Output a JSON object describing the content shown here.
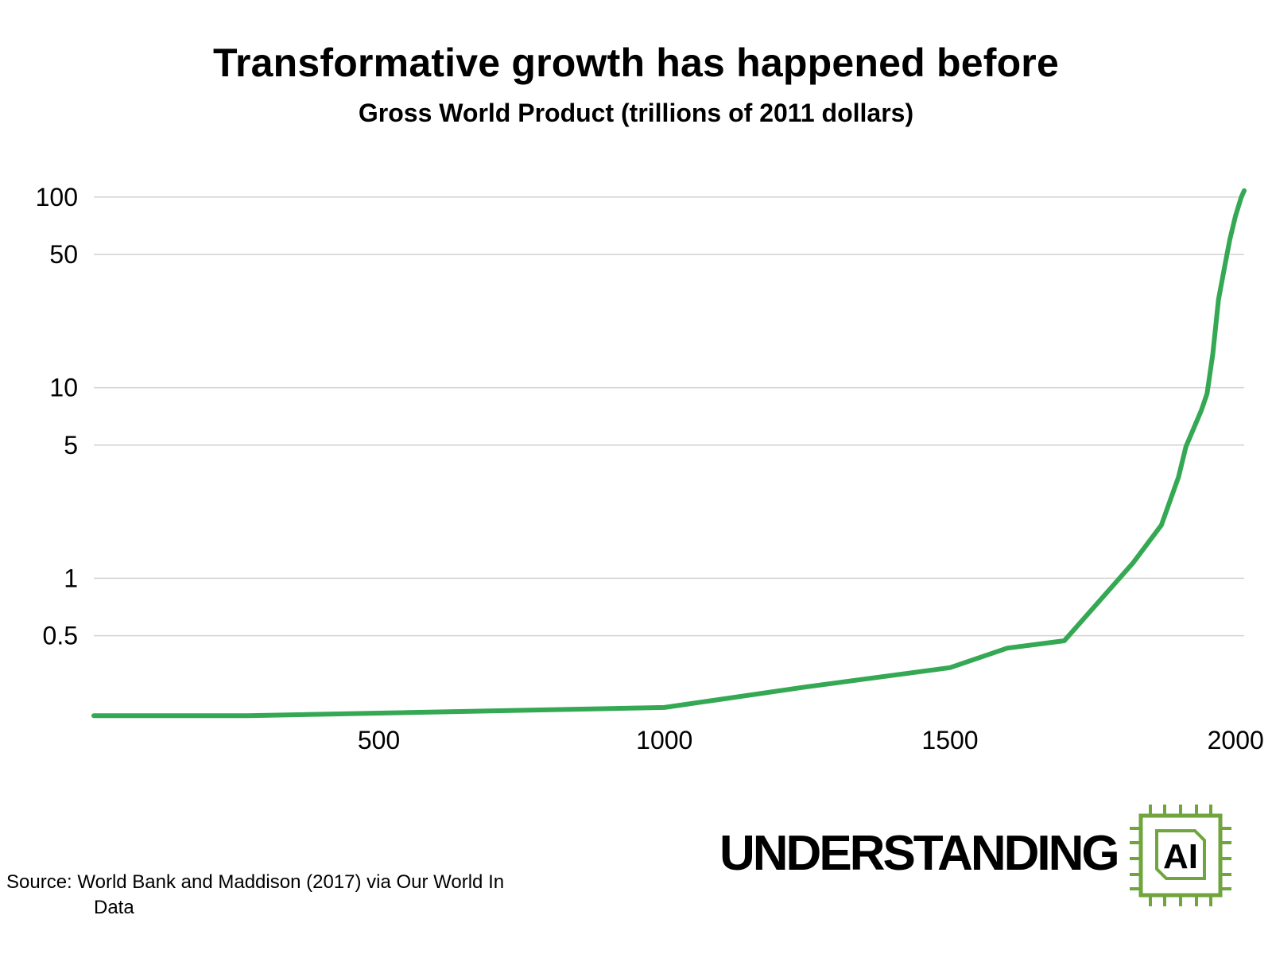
{
  "chart_data": {
    "type": "line",
    "title": "Transformative growth has happened before",
    "subtitle": "Gross World Product (trillions of 2011 dollars)",
    "xlabel": "",
    "ylabel": "",
    "y_scale": "log",
    "xlim": [
      1,
      2015
    ],
    "ylim": [
      0.2,
      110
    ],
    "x_ticks": [
      500,
      1000,
      1500,
      2000
    ],
    "x_tick_labels": [
      "500",
      "1000",
      "1500",
      "2000"
    ],
    "y_ticks": [
      0.5,
      1,
      5,
      10,
      50,
      100
    ],
    "y_tick_labels": [
      "0.5",
      "1",
      "5",
      "10",
      "50",
      "100"
    ],
    "grid": "horizontal",
    "line_color": "#34a853",
    "series": [
      {
        "x": [
          1,
          270,
          1000,
          1250,
          1500,
          1600,
          1700,
          1820,
          1870,
          1900,
          1913,
          1940,
          1950,
          1960,
          1970,
          1980,
          1990,
          2000,
          2010,
          2015
        ],
        "values": [
          0.19,
          0.19,
          0.21,
          0.27,
          0.34,
          0.43,
          0.47,
          1.2,
          1.9,
          3.4,
          4.9,
          7.6,
          9.3,
          15,
          29,
          42,
          60,
          80,
          100,
          108
        ]
      }
    ]
  },
  "source": {
    "line1": "Source: World Bank and Maddison (2017) via Our World In",
    "line2": "Data"
  },
  "brand": {
    "text": "UNDERSTANDING",
    "chip_label": "AI",
    "color": "#6fa53c"
  }
}
